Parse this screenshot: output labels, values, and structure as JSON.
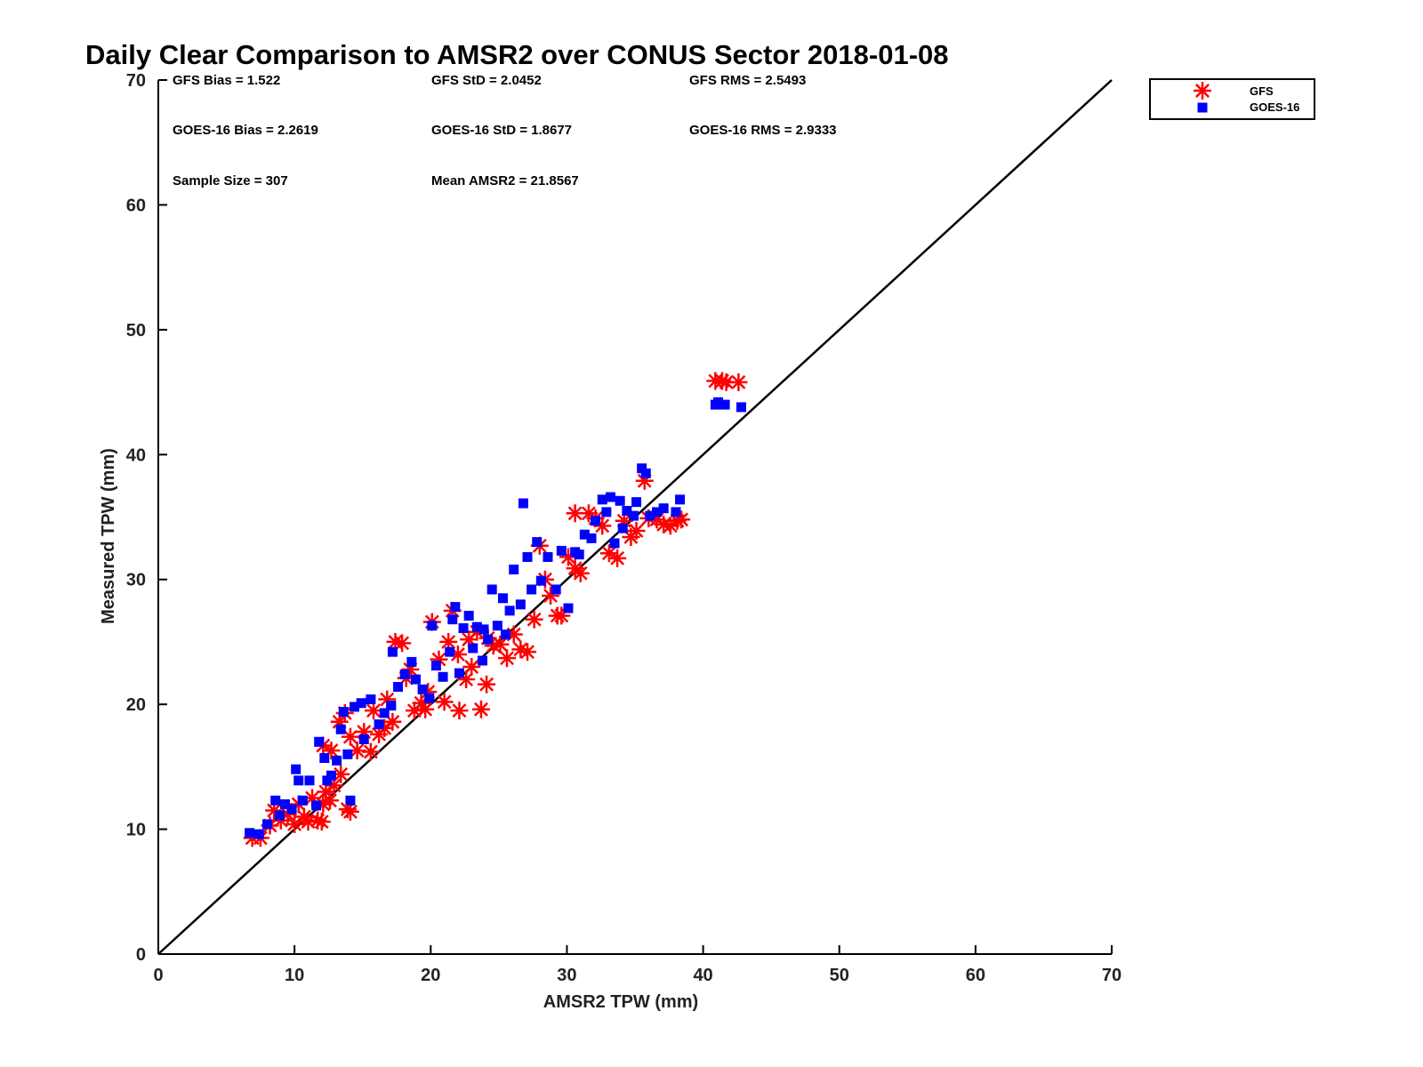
{
  "chart_data": {
    "type": "scatter",
    "title": "Daily Clear Comparison to AMSR2 over CONUS Sector 2018-01-08",
    "xlabel": "AMSR2 TPW (mm)",
    "ylabel": "Measured TPW (mm)",
    "xlim": [
      0,
      70
    ],
    "ylim": [
      0,
      70
    ],
    "xticks": [
      0,
      10,
      20,
      30,
      40,
      50,
      60,
      70
    ],
    "yticks": [
      0,
      10,
      20,
      30,
      40,
      50,
      60,
      70
    ],
    "xtick_labels": [
      "0",
      "10",
      "20",
      "30",
      "40",
      "50",
      "60",
      "70"
    ],
    "ytick_labels": [
      "0",
      "10",
      "20",
      "30",
      "40",
      "50",
      "60",
      "70"
    ],
    "grid": false,
    "legend": {
      "placement": "outside-top-right",
      "entries": [
        {
          "name": "GFS",
          "marker": "asterisk",
          "color": "#ff0000"
        },
        {
          "name": "GOES-16",
          "marker": "square",
          "color": "#0000ff"
        }
      ]
    },
    "reference_line": {
      "type": "one-to-one",
      "from": [
        0,
        0
      ],
      "to": [
        70,
        70
      ],
      "color": "#000000"
    },
    "stats": [
      {
        "label": "GFS Bias = 1.522"
      },
      {
        "label": "GFS StD = 2.0452"
      },
      {
        "label": "GFS RMS = 2.5493"
      },
      {
        "label": "GOES-16 Bias = 2.2619"
      },
      {
        "label": "GOES-16 StD = 1.8677"
      },
      {
        "label": "GOES-16 RMS = 2.9333"
      },
      {
        "label": "Sample Size = 307"
      },
      {
        "label": "Mean AMSR2 = 21.8567"
      }
    ],
    "series": [
      {
        "name": "GFS",
        "color": "#ff0000",
        "marker": "asterisk",
        "points": [
          [
            6.9,
            9.3
          ],
          [
            7.5,
            9.3
          ],
          [
            8.2,
            10.3
          ],
          [
            8.5,
            11.5
          ],
          [
            9.0,
            10.7
          ],
          [
            9.5,
            11.2
          ],
          [
            10.0,
            10.4
          ],
          [
            10.3,
            12.0
          ],
          [
            10.7,
            11.0
          ],
          [
            11.0,
            10.6
          ],
          [
            11.3,
            12.5
          ],
          [
            11.7,
            10.7
          ],
          [
            12.0,
            10.6
          ],
          [
            12.1,
            12.0
          ],
          [
            12.3,
            13.0
          ],
          [
            12.6,
            12.3
          ],
          [
            12.9,
            13.5
          ],
          [
            13.4,
            14.4
          ],
          [
            13.9,
            11.6
          ],
          [
            14.1,
            11.4
          ],
          [
            12.1,
            16.7
          ],
          [
            12.7,
            16.3
          ],
          [
            13.3,
            18.6
          ],
          [
            13.7,
            19.3
          ],
          [
            14.1,
            17.4
          ],
          [
            14.6,
            16.3
          ],
          [
            15.1,
            17.8
          ],
          [
            15.6,
            16.2
          ],
          [
            16.2,
            17.6
          ],
          [
            16.6,
            18.1
          ],
          [
            17.2,
            18.6
          ],
          [
            17.4,
            25.0
          ],
          [
            17.9,
            24.9
          ],
          [
            18.2,
            22.1
          ],
          [
            18.8,
            19.5
          ],
          [
            19.3,
            20.1
          ],
          [
            19.6,
            19.6
          ],
          [
            20.1,
            26.6
          ],
          [
            21.0,
            20.2
          ],
          [
            21.6,
            27.5
          ],
          [
            22.1,
            19.5
          ],
          [
            22.6,
            22.0
          ],
          [
            23.0,
            23.0
          ],
          [
            23.7,
            19.6
          ],
          [
            24.1,
            21.6
          ],
          [
            24.6,
            24.7
          ],
          [
            25.1,
            24.8
          ],
          [
            25.6,
            23.7
          ],
          [
            26.1,
            25.6
          ],
          [
            26.6,
            24.4
          ],
          [
            27.1,
            24.2
          ],
          [
            27.6,
            26.8
          ],
          [
            28.0,
            32.7
          ],
          [
            28.4,
            30.0
          ],
          [
            28.8,
            28.7
          ],
          [
            29.3,
            27.1
          ],
          [
            29.6,
            27.1
          ],
          [
            30.1,
            31.8
          ],
          [
            30.6,
            30.9
          ],
          [
            31.0,
            30.5
          ],
          [
            31.6,
            35.3
          ],
          [
            32.1,
            34.9
          ],
          [
            32.6,
            34.3
          ],
          [
            33.1,
            32.1
          ],
          [
            33.7,
            31.7
          ],
          [
            34.2,
            34.7
          ],
          [
            34.7,
            33.4
          ],
          [
            35.1,
            33.9
          ],
          [
            35.7,
            37.9
          ],
          [
            36.0,
            34.9
          ],
          [
            36.6,
            34.8
          ],
          [
            37.1,
            34.4
          ],
          [
            37.6,
            34.3
          ],
          [
            38.1,
            34.7
          ],
          [
            38.4,
            34.8
          ],
          [
            40.9,
            45.9
          ],
          [
            41.4,
            45.9
          ],
          [
            41.7,
            45.8
          ],
          [
            42.6,
            45.8
          ],
          [
            30.6,
            35.3
          ],
          [
            22.0,
            24.0
          ],
          [
            22.8,
            25.2
          ],
          [
            23.4,
            25.8
          ],
          [
            24.2,
            25.3
          ],
          [
            19.8,
            21.0
          ],
          [
            18.5,
            22.8
          ],
          [
            20.6,
            23.6
          ],
          [
            21.3,
            25.0
          ],
          [
            15.8,
            19.5
          ],
          [
            16.8,
            20.4
          ]
        ]
      },
      {
        "name": "GOES-16",
        "color": "#0000ff",
        "marker": "square",
        "points": [
          [
            6.7,
            9.7
          ],
          [
            7.4,
            9.6
          ],
          [
            8.0,
            10.4
          ],
          [
            8.6,
            12.3
          ],
          [
            8.9,
            11.1
          ],
          [
            9.3,
            12.0
          ],
          [
            9.8,
            11.6
          ],
          [
            10.1,
            14.8
          ],
          [
            10.3,
            13.9
          ],
          [
            10.6,
            12.3
          ],
          [
            11.1,
            13.9
          ],
          [
            11.6,
            11.9
          ],
          [
            11.8,
            17.0
          ],
          [
            12.2,
            15.7
          ],
          [
            12.4,
            13.9
          ],
          [
            12.7,
            14.3
          ],
          [
            13.1,
            15.5
          ],
          [
            13.4,
            18.0
          ],
          [
            13.6,
            19.4
          ],
          [
            13.9,
            16.0
          ],
          [
            14.1,
            12.3
          ],
          [
            14.4,
            19.8
          ],
          [
            14.9,
            20.1
          ],
          [
            15.1,
            17.2
          ],
          [
            15.6,
            20.4
          ],
          [
            16.2,
            18.4
          ],
          [
            16.6,
            19.3
          ],
          [
            17.1,
            19.9
          ],
          [
            17.2,
            24.2
          ],
          [
            17.6,
            21.4
          ],
          [
            18.1,
            22.4
          ],
          [
            18.6,
            23.4
          ],
          [
            18.9,
            22.0
          ],
          [
            19.4,
            21.2
          ],
          [
            19.9,
            20.5
          ],
          [
            20.1,
            26.3
          ],
          [
            20.4,
            23.1
          ],
          [
            20.9,
            22.2
          ],
          [
            21.4,
            24.2
          ],
          [
            21.6,
            26.8
          ],
          [
            22.1,
            22.5
          ],
          [
            22.4,
            26.1
          ],
          [
            22.8,
            27.1
          ],
          [
            23.1,
            24.5
          ],
          [
            23.4,
            26.2
          ],
          [
            23.8,
            23.5
          ],
          [
            24.2,
            25.2
          ],
          [
            24.5,
            29.2
          ],
          [
            24.9,
            26.3
          ],
          [
            25.3,
            28.5
          ],
          [
            25.8,
            27.5
          ],
          [
            26.1,
            30.8
          ],
          [
            26.6,
            28.0
          ],
          [
            26.8,
            36.1
          ],
          [
            27.1,
            31.8
          ],
          [
            27.4,
            29.2
          ],
          [
            27.8,
            33.0
          ],
          [
            28.1,
            29.9
          ],
          [
            28.6,
            31.8
          ],
          [
            29.2,
            29.2
          ],
          [
            29.6,
            32.3
          ],
          [
            30.1,
            27.7
          ],
          [
            30.6,
            32.2
          ],
          [
            30.9,
            32.0
          ],
          [
            31.3,
            33.6
          ],
          [
            31.8,
            33.3
          ],
          [
            32.1,
            34.7
          ],
          [
            32.6,
            36.4
          ],
          [
            32.9,
            35.4
          ],
          [
            33.2,
            36.6
          ],
          [
            33.5,
            32.9
          ],
          [
            33.9,
            36.3
          ],
          [
            34.1,
            34.1
          ],
          [
            34.4,
            35.5
          ],
          [
            34.9,
            35.1
          ],
          [
            35.1,
            36.2
          ],
          [
            35.5,
            38.9
          ],
          [
            35.8,
            38.5
          ],
          [
            36.1,
            35.1
          ],
          [
            36.6,
            35.4
          ],
          [
            37.1,
            35.7
          ],
          [
            38.0,
            35.4
          ],
          [
            38.3,
            36.4
          ],
          [
            40.9,
            44.0
          ],
          [
            41.1,
            44.2
          ],
          [
            41.6,
            44.0
          ],
          [
            42.8,
            43.8
          ],
          [
            21.8,
            27.8
          ],
          [
            23.9,
            26.0
          ],
          [
            25.5,
            25.6
          ]
        ]
      }
    ]
  }
}
